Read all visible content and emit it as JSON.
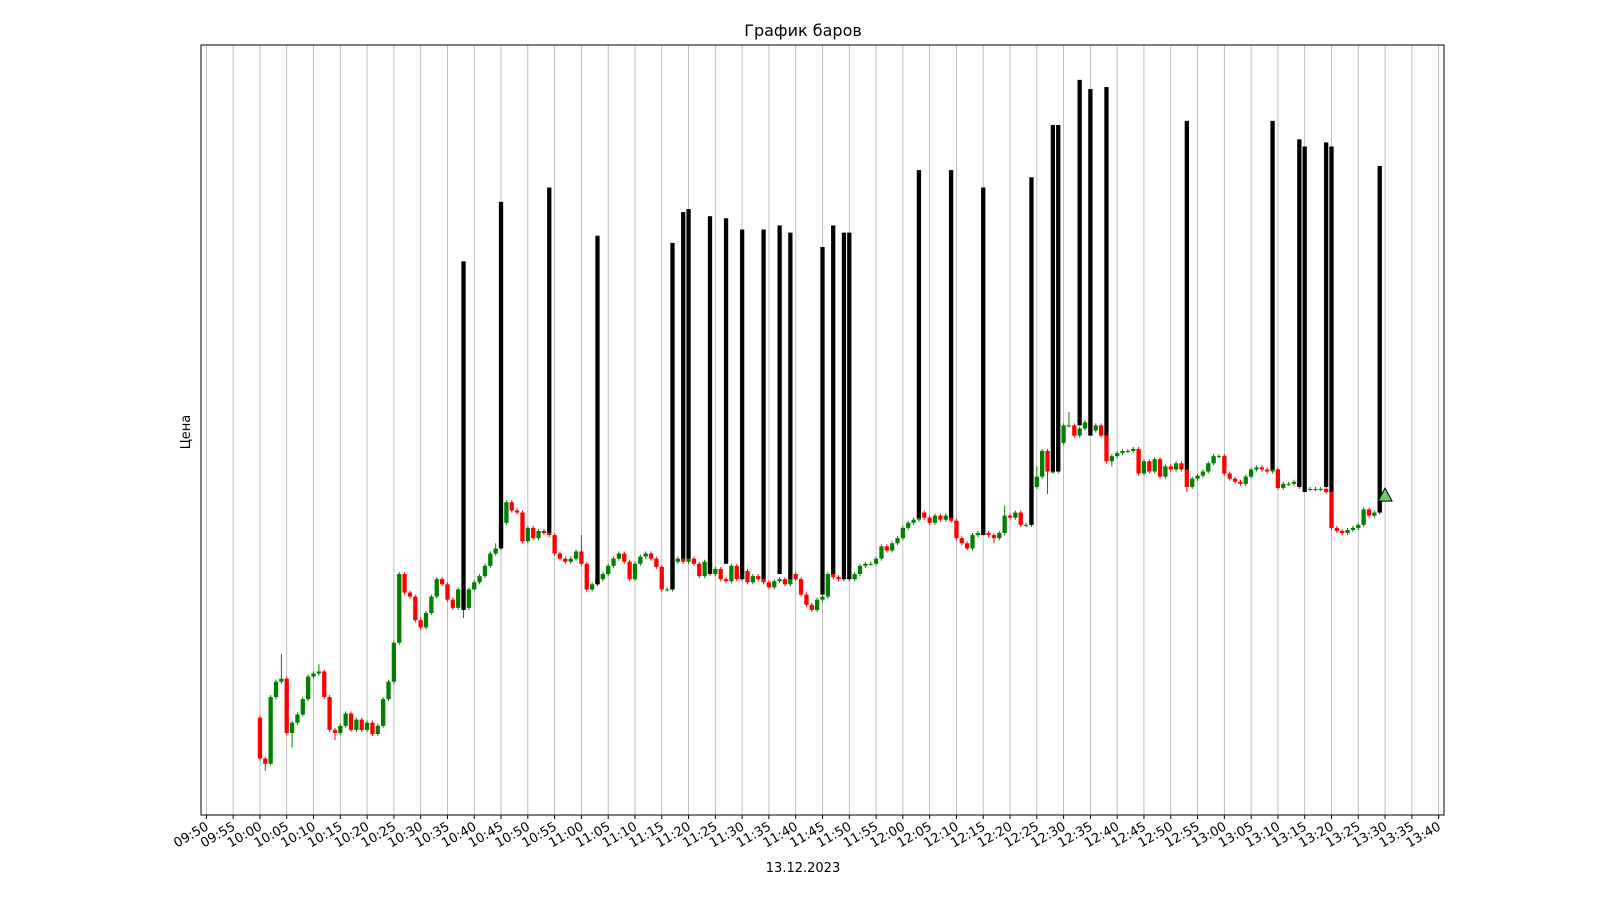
{
  "chart_data": {
    "type": "candlestick",
    "title": "График баров",
    "xlabel": "13.12.2023",
    "ylabel": "Цена",
    "up_color": "green",
    "down_color": "red",
    "grid": "x",
    "xlim": [
      "09:49",
      "13:41"
    ],
    "ylim": [
      0,
      751
    ],
    "xticks": [
      "09:50",
      "09:55",
      "10:00",
      "10:05",
      "10:10",
      "10:15",
      "10:20",
      "10:25",
      "10:30",
      "10:35",
      "10:40",
      "10:45",
      "10:50",
      "10:55",
      "11:00",
      "11:05",
      "11:10",
      "11:15",
      "11:20",
      "11:25",
      "11:30",
      "11:35",
      "11:40",
      "11:45",
      "11:50",
      "11:55",
      "12:00",
      "12:05",
      "12:10",
      "12:15",
      "12:20",
      "12:25",
      "12:30",
      "12:35",
      "12:40",
      "12:45",
      "12:50",
      "12:55",
      "13:00",
      "13:05",
      "13:10",
      "13:15",
      "13:20",
      "13:25",
      "13:30",
      "13:35",
      "13:40"
    ],
    "x": [
      "10:00",
      "10:01",
      "10:02",
      "10:03",
      "10:04",
      "10:05",
      "10:06",
      "10:07",
      "10:08",
      "10:09",
      "10:10",
      "10:11",
      "10:12",
      "10:13",
      "10:14",
      "10:15",
      "10:16",
      "10:17",
      "10:18",
      "10:19",
      "10:20",
      "10:21",
      "10:22",
      "10:23",
      "10:24",
      "10:25",
      "10:26",
      "10:27",
      "10:28",
      "10:29",
      "10:30",
      "10:31",
      "10:32",
      "10:33",
      "10:34",
      "10:35",
      "10:36",
      "10:37",
      "10:38",
      "10:39",
      "10:40",
      "10:41",
      "10:42",
      "10:43",
      "10:44",
      "10:45",
      "10:46",
      "10:47",
      "10:48",
      "10:49",
      "10:50",
      "10:51",
      "10:52",
      "10:53",
      "10:54",
      "10:55",
      "10:56",
      "10:57",
      "10:58",
      "10:59",
      "11:00",
      "11:01",
      "11:02",
      "11:03",
      "11:04",
      "11:05",
      "11:06",
      "11:07",
      "11:08",
      "11:09",
      "11:10",
      "11:11",
      "11:12",
      "11:13",
      "11:14",
      "11:15",
      "11:16",
      "11:17",
      "11:18",
      "11:19",
      "11:20",
      "11:21",
      "11:22",
      "11:23",
      "11:24",
      "11:25",
      "11:26",
      "11:27",
      "11:28",
      "11:29",
      "11:30",
      "11:31",
      "11:32",
      "11:33",
      "11:34",
      "11:35",
      "11:36",
      "11:37",
      "11:38",
      "11:39",
      "11:40",
      "11:41",
      "11:42",
      "11:43",
      "11:44",
      "11:45",
      "11:46",
      "11:47",
      "11:48",
      "11:49",
      "11:50",
      "11:51",
      "11:52",
      "11:53",
      "11:54",
      "11:55",
      "11:56",
      "11:57",
      "11:58",
      "11:59",
      "12:00",
      "12:01",
      "12:02",
      "12:03",
      "12:04",
      "12:05",
      "12:06",
      "12:07",
      "12:08",
      "12:09",
      "12:10",
      "12:11",
      "12:12",
      "12:13",
      "12:14",
      "12:15",
      "12:16",
      "12:17",
      "12:18",
      "12:19",
      "12:20",
      "12:21",
      "12:22",
      "12:23",
      "12:24",
      "12:25",
      "12:26",
      "12:27",
      "12:28",
      "12:29",
      "12:30",
      "12:31",
      "12:32",
      "12:33",
      "12:34",
      "12:35",
      "12:36",
      "12:37",
      "12:38",
      "12:39",
      "12:40",
      "12:41",
      "12:42",
      "12:43",
      "12:44",
      "12:45",
      "12:46",
      "12:47",
      "12:48",
      "12:49",
      "12:50",
      "12:51",
      "12:52",
      "12:53",
      "12:54",
      "12:55",
      "12:56",
      "12:57",
      "12:58",
      "12:59",
      "13:00",
      "13:01",
      "13:02",
      "13:03",
      "13:04",
      "13:05",
      "13:06",
      "13:07",
      "13:08",
      "13:09",
      "13:10",
      "13:11",
      "13:12",
      "13:13",
      "13:14",
      "13:15",
      "13:16",
      "13:17",
      "13:18",
      "13:19",
      "13:20",
      "13:21",
      "13:22",
      "13:23",
      "13:24",
      "13:25",
      "13:26",
      "13:27",
      "13:28",
      "13:29"
    ],
    "open": [
      95,
      55,
      50,
      115,
      130,
      133,
      80,
      90,
      98,
      113,
      135,
      138,
      140,
      115,
      83,
      80,
      87,
      99,
      83,
      93,
      83,
      90,
      79,
      87,
      113,
      130,
      168,
      235,
      217,
      213,
      190,
      183,
      197,
      213,
      230,
      225,
      210,
      202,
      220,
      202,
      220,
      227,
      233,
      243,
      255,
      260,
      285,
      305,
      297,
      295,
      267,
      280,
      270,
      277,
      275,
      273,
      255,
      250,
      247,
      250,
      257,
      245,
      220,
      225,
      230,
      235,
      243,
      250,
      255,
      247,
      230,
      245,
      252,
      255,
      250,
      242,
      220,
      220,
      247,
      250,
      247,
      250,
      245,
      233,
      247,
      235,
      240,
      230,
      228,
      243,
      230,
      238,
      227,
      233,
      230,
      227,
      222,
      228,
      230,
      225,
      235,
      230,
      215,
      205,
      200,
      210,
      213,
      235,
      232,
      230,
      232,
      230,
      235,
      243,
      245,
      245,
      250,
      262,
      258,
      265,
      270,
      280,
      285,
      288,
      295,
      290,
      285,
      292,
      288,
      292,
      287,
      270,
      265,
      260,
      273,
      275,
      275,
      273,
      270,
      275,
      292,
      290,
      295,
      283,
      283,
      320,
      330,
      355,
      335,
      335,
      363,
      380,
      380,
      370,
      377,
      383,
      375,
      380,
      370,
      345,
      350,
      353,
      355,
      355,
      357,
      333,
      345,
      335,
      347,
      330,
      340,
      337,
      343,
      337,
      320,
      328,
      331,
      335,
      343,
      350,
      350,
      333,
      328,
      325,
      323,
      330,
      337,
      339,
      337,
      335,
      337,
      319,
      323,
      323,
      325,
      320,
      318,
      318,
      318,
      318,
      315,
      280,
      277,
      275,
      278,
      280,
      283,
      298,
      292,
      295
    ],
    "high": [
      97,
      57,
      117,
      132,
      157,
      135,
      92,
      100,
      115,
      137,
      140,
      147,
      142,
      117,
      85,
      89,
      101,
      101,
      95,
      95,
      92,
      92,
      89,
      115,
      132,
      170,
      237,
      237,
      219,
      215,
      192,
      199,
      215,
      232,
      232,
      227,
      212,
      222,
      222,
      222,
      229,
      235,
      245,
      257,
      265,
      290,
      307,
      307,
      299,
      297,
      282,
      282,
      279,
      279,
      277,
      275,
      257,
      252,
      252,
      259,
      273,
      247,
      227,
      232,
      237,
      245,
      252,
      257,
      257,
      249,
      247,
      254,
      257,
      257,
      252,
      244,
      222,
      249,
      252,
      252,
      252,
      252,
      247,
      249,
      249,
      242,
      242,
      232,
      245,
      245,
      240,
      240,
      235,
      235,
      232,
      229,
      230,
      232,
      232,
      237,
      237,
      232,
      217,
      207,
      212,
      215,
      237,
      237,
      234,
      234,
      234,
      237,
      245,
      247,
      247,
      252,
      264,
      264,
      267,
      272,
      282,
      287,
      290,
      302,
      297,
      292,
      294,
      294,
      294,
      294,
      289,
      272,
      267,
      275,
      277,
      277,
      277,
      275,
      277,
      302,
      294,
      297,
      297,
      285,
      322,
      340,
      357,
      357,
      337,
      365,
      382,
      393,
      382,
      379,
      385,
      385,
      382,
      382,
      372,
      352,
      355,
      357,
      357,
      359,
      359,
      347,
      347,
      349,
      349,
      342,
      342,
      345,
      345,
      339,
      330,
      333,
      337,
      345,
      352,
      352,
      352,
      335,
      330,
      327,
      332,
      339,
      341,
      341,
      339,
      339,
      339,
      325,
      325,
      327,
      327,
      322,
      320,
      320,
      320,
      320,
      317,
      282,
      279,
      280,
      282,
      285,
      300,
      300,
      297,
      307
    ],
    "low": [
      53,
      43,
      48,
      113,
      128,
      78,
      66,
      88,
      96,
      111,
      133,
      136,
      113,
      81,
      73,
      78,
      85,
      81,
      81,
      81,
      81,
      77,
      77,
      85,
      111,
      128,
      166,
      215,
      211,
      188,
      181,
      181,
      195,
      211,
      223,
      208,
      200,
      200,
      192,
      200,
      218,
      225,
      231,
      241,
      253,
      258,
      283,
      295,
      293,
      265,
      265,
      268,
      268,
      273,
      271,
      253,
      248,
      245,
      245,
      248,
      243,
      218,
      218,
      223,
      228,
      233,
      241,
      248,
      245,
      228,
      228,
      243,
      250,
      248,
      240,
      218,
      218,
      218,
      245,
      245,
      245,
      243,
      231,
      231,
      233,
      233,
      228,
      226,
      226,
      228,
      228,
      225,
      225,
      228,
      225,
      220,
      220,
      226,
      223,
      223,
      228,
      213,
      203,
      198,
      198,
      208,
      211,
      230,
      228,
      228,
      228,
      228,
      233,
      241,
      243,
      243,
      248,
      256,
      256,
      263,
      268,
      278,
      283,
      286,
      288,
      283,
      283,
      286,
      286,
      285,
      268,
      263,
      258,
      258,
      271,
      273,
      271,
      265,
      268,
      273,
      288,
      288,
      281,
      281,
      281,
      318,
      328,
      313,
      333,
      333,
      361,
      378,
      368,
      368,
      375,
      373,
      373,
      368,
      343,
      340,
      348,
      351,
      353,
      353,
      331,
      331,
      333,
      333,
      328,
      328,
      335,
      335,
      335,
      315,
      318,
      326,
      329,
      333,
      341,
      348,
      331,
      326,
      323,
      321,
      321,
      328,
      335,
      335,
      333,
      333,
      317,
      317,
      321,
      321,
      318,
      316,
      316,
      316,
      316,
      313,
      278,
      275,
      273,
      273,
      276,
      278,
      281,
      290,
      290,
      293
    ],
    "close": [
      55,
      50,
      115,
      130,
      133,
      80,
      90,
      98,
      113,
      135,
      138,
      140,
      115,
      83,
      80,
      87,
      99,
      83,
      93,
      83,
      90,
      79,
      87,
      113,
      130,
      168,
      235,
      217,
      213,
      190,
      183,
      197,
      213,
      230,
      225,
      210,
      202,
      220,
      202,
      220,
      227,
      233,
      243,
      255,
      260,
      285,
      305,
      297,
      295,
      267,
      280,
      270,
      277,
      275,
      273,
      255,
      250,
      247,
      250,
      257,
      245,
      220,
      225,
      230,
      235,
      243,
      250,
      255,
      247,
      230,
      245,
      252,
      255,
      250,
      242,
      220,
      220,
      247,
      250,
      247,
      250,
      245,
      233,
      247,
      235,
      240,
      230,
      228,
      243,
      230,
      238,
      227,
      233,
      230,
      227,
      222,
      228,
      230,
      225,
      235,
      230,
      215,
      205,
      200,
      210,
      213,
      235,
      232,
      230,
      232,
      230,
      235,
      243,
      245,
      245,
      250,
      262,
      258,
      265,
      270,
      280,
      285,
      288,
      295,
      290,
      285,
      292,
      288,
      292,
      287,
      270,
      265,
      260,
      273,
      275,
      275,
      273,
      270,
      275,
      292,
      290,
      295,
      283,
      283,
      320,
      330,
      355,
      335,
      335,
      363,
      380,
      380,
      370,
      377,
      383,
      375,
      380,
      370,
      345,
      350,
      353,
      355,
      355,
      357,
      333,
      345,
      335,
      347,
      330,
      340,
      337,
      343,
      337,
      320,
      328,
      331,
      335,
      343,
      350,
      350,
      333,
      328,
      325,
      323,
      330,
      337,
      339,
      337,
      335,
      337,
      319,
      323,
      323,
      325,
      320,
      318,
      318,
      318,
      318,
      315,
      280,
      277,
      275,
      278,
      280,
      283,
      298,
      292,
      295,
      305
    ],
    "bars": {
      "color": "black",
      "x": [
        "10:38",
        "10:45",
        "10:54",
        "11:03",
        "11:17",
        "11:19",
        "11:20",
        "11:24",
        "11:27",
        "11:30",
        "11:34",
        "11:37",
        "11:39",
        "11:45",
        "11:47",
        "11:49",
        "11:50",
        "12:03",
        "12:09",
        "12:15",
        "12:24",
        "12:28",
        "12:29",
        "12:33",
        "12:35",
        "12:38",
        "12:53",
        "13:09",
        "13:14",
        "13:15",
        "13:19",
        "13:20",
        "13:29"
      ],
      "low": [
        200,
        260,
        275,
        225,
        220,
        250,
        250,
        235,
        245,
        230,
        230,
        235,
        230,
        215,
        235,
        230,
        230,
        290,
        290,
        273,
        283,
        335,
        335,
        380,
        370,
        370,
        337,
        337,
        320,
        315,
        320,
        315,
        295
      ],
      "high": [
        540,
        598,
        612,
        565,
        558,
        588,
        591,
        584,
        582,
        571,
        571,
        575,
        568,
        554,
        575,
        568,
        568,
        629,
        629,
        612,
        622,
        673,
        673,
        717,
        708,
        710,
        677,
        677,
        659,
        652,
        656,
        652,
        633
      ]
    },
    "marker": {
      "x": "13:30",
      "value": 312,
      "color": "#66cc66"
    }
  }
}
